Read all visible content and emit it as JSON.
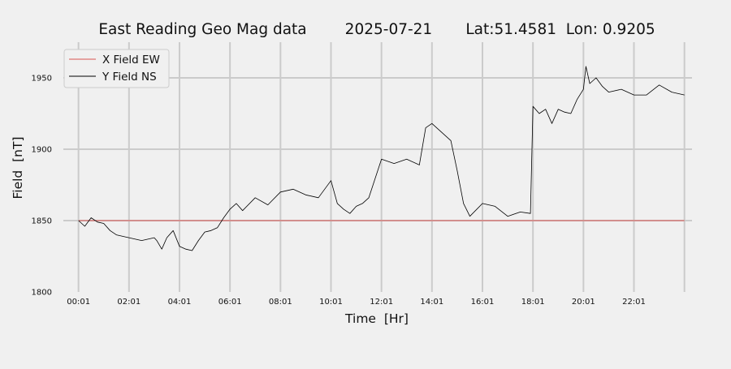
{
  "chart_data": {
    "type": "line",
    "title": "East Reading Geo Mag data        2025-07-21       Lat:51.4581  Lon: 0.9205",
    "xlabel": "Time  [Hr]",
    "ylabel": "Field  [nT]",
    "ylim": [
      1800,
      1975
    ],
    "xlim": [
      -0.6,
      24.3
    ],
    "x_unit": "hours",
    "x_ticks": [
      0,
      2,
      4,
      6,
      8,
      10,
      12,
      14,
      16,
      18,
      20,
      22,
      24
    ],
    "x_tick_labels": [
      "00:01",
      "02:01",
      "04:01",
      "06:01",
      "08:01",
      "10:01",
      "12:01",
      "14:01",
      "16:01",
      "18:01",
      "20:01",
      "22:01",
      ""
    ],
    "y_ticks": [
      1800,
      1850,
      1900,
      1950
    ],
    "y_tick_labels": [
      "1800",
      "1850",
      "1900",
      "1950"
    ],
    "grid": true,
    "legend_position": "upper-left",
    "series": [
      {
        "name": "X Field EW",
        "color": "#d9534f",
        "x": [
          0,
          24
        ],
        "values": [
          1850,
          1850
        ]
      },
      {
        "name": "Y Field NS",
        "color": "#000000",
        "x": [
          0,
          0.25,
          0.5,
          0.75,
          1,
          1.25,
          1.5,
          2,
          2.5,
          3,
          3.1,
          3.3,
          3.5,
          3.75,
          4,
          4.25,
          4.5,
          4.75,
          5,
          5.25,
          5.5,
          5.75,
          6,
          6.25,
          6.5,
          7,
          7.5,
          8,
          8.5,
          9,
          9.5,
          10,
          10.25,
          10.5,
          10.75,
          11,
          11.25,
          11.5,
          12,
          12.5,
          13,
          13.5,
          13.75,
          14,
          14.5,
          14.75,
          15,
          15.25,
          15.5,
          16,
          16.5,
          17,
          17.5,
          17.9,
          18,
          18.25,
          18.5,
          18.75,
          19,
          19.25,
          19.5,
          19.75,
          20,
          20.1,
          20.25,
          20.5,
          20.75,
          21,
          21.5,
          22,
          22.5,
          23,
          23.5,
          24
        ],
        "values": [
          1850,
          1846,
          1852,
          1849,
          1848,
          1843,
          1840,
          1838,
          1836,
          1838,
          1836,
          1830,
          1838,
          1843,
          1832,
          1830,
          1829,
          1836,
          1842,
          1843,
          1845,
          1852,
          1858,
          1862,
          1857,
          1866,
          1861,
          1870,
          1872,
          1868,
          1866,
          1878,
          1862,
          1858,
          1855,
          1860,
          1862,
          1866,
          1893,
          1890,
          1893,
          1889,
          1915,
          1918,
          1910,
          1906,
          1885,
          1862,
          1853,
          1862,
          1860,
          1853,
          1856,
          1855,
          1930,
          1925,
          1928,
          1918,
          1928,
          1926,
          1925,
          1935,
          1942,
          1958,
          1946,
          1950,
          1944,
          1940,
          1942,
          1938,
          1938,
          1945,
          1940,
          1938
        ]
      }
    ]
  }
}
